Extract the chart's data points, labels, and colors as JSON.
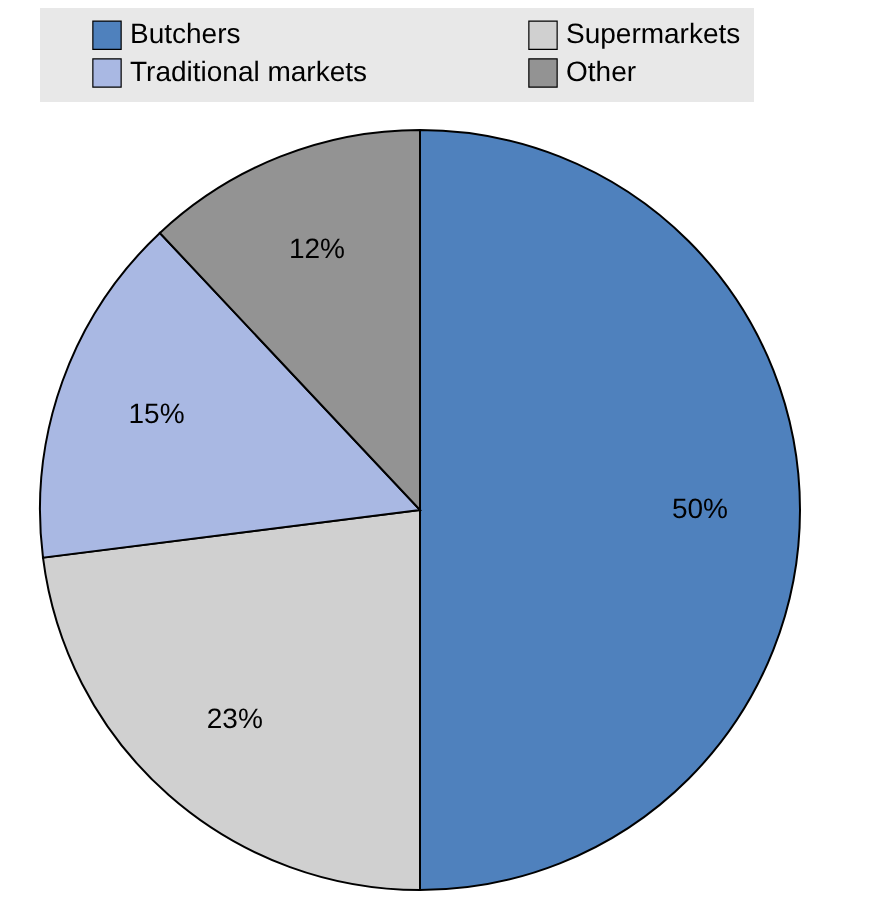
{
  "chart_data": {
    "type": "pie",
    "categories": [
      "Butchers",
      "Supermarkets",
      "Traditional markets",
      "Other"
    ],
    "values": [
      50,
      23,
      15,
      12
    ],
    "colors": [
      "#4f81bd",
      "#d0d0d0",
      "#a9b8e3",
      "#939393"
    ],
    "value_labels": [
      "50%",
      "23%",
      "15%",
      "12%"
    ],
    "legend": "top"
  }
}
